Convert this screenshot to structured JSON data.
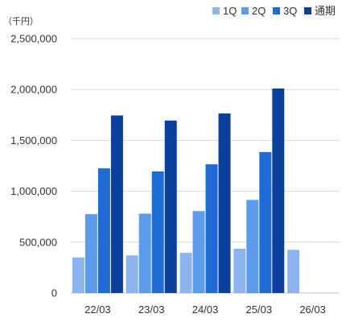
{
  "chart_data": {
    "type": "bar",
    "unit_label": "（千円）",
    "categories": [
      "22/03",
      "23/03",
      "24/03",
      "25/03",
      "26/03"
    ],
    "series": [
      {
        "name": "1Q",
        "color": "#8DB4EE",
        "values": [
          350000,
          370000,
          395000,
          435000,
          425000
        ]
      },
      {
        "name": "2Q",
        "color": "#5B9BEA",
        "values": [
          775000,
          780000,
          805000,
          915000,
          null
        ]
      },
      {
        "name": "3Q",
        "color": "#1F6BD6",
        "values": [
          1225000,
          1195000,
          1265000,
          1385000,
          null
        ]
      },
      {
        "name": "通期",
        "color": "#0A3F9C",
        "values": [
          1745000,
          1695000,
          1765000,
          2010000,
          null
        ]
      }
    ],
    "yticks": [
      0,
      500000,
      1000000,
      1500000,
      2000000,
      2500000
    ],
    "ylim": [
      0,
      2500000
    ],
    "grid": true,
    "legend_position": "top-right"
  }
}
